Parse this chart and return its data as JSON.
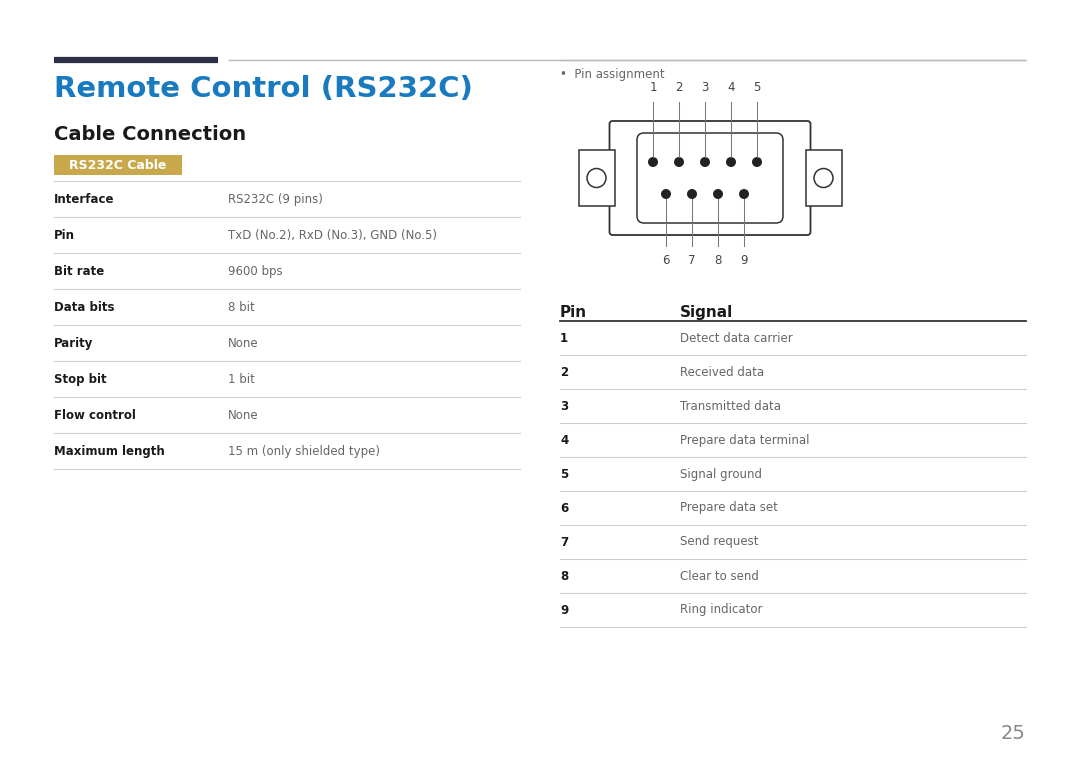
{
  "title": "Remote Control (RS232C)",
  "subtitle": "Cable Connection",
  "badge_text": "RS232C Cable",
  "badge_bg": "#c8a84b",
  "badge_text_color": "#ffffff",
  "title_color": "#1a7abf",
  "subtitle_color": "#1a1a1a",
  "bg_color": "#ffffff",
  "header_line1_color": "#2d3047",
  "header_line2_color": "#bbbbbb",
  "left_table_headers": [
    "Interface",
    "Pin",
    "Bit rate",
    "Data bits",
    "Parity",
    "Stop bit",
    "Flow control",
    "Maximum length"
  ],
  "left_table_values": [
    "RS232C (9 pins)",
    "TxD (No.2), RxD (No.3), GND (No.5)",
    "9600 bps",
    "8 bit",
    "None",
    "1 bit",
    "None",
    "15 m (only shielded type)"
  ],
  "pin_signal_headers": [
    "Pin",
    "Signal"
  ],
  "pin_numbers": [
    "1",
    "2",
    "3",
    "4",
    "5",
    "6",
    "7",
    "8",
    "9"
  ],
  "pin_signals": [
    "Detect data carrier",
    "Received data",
    "Transmitted data",
    "Prepare data terminal",
    "Signal ground",
    "Prepare data set",
    "Send request",
    "Clear to send",
    "Ring indicator"
  ],
  "pin_assignment_label": "Pin assignment",
  "page_number": "25",
  "connector_color": "#333333",
  "dot_color": "#222222",
  "circle_color": "#333333"
}
